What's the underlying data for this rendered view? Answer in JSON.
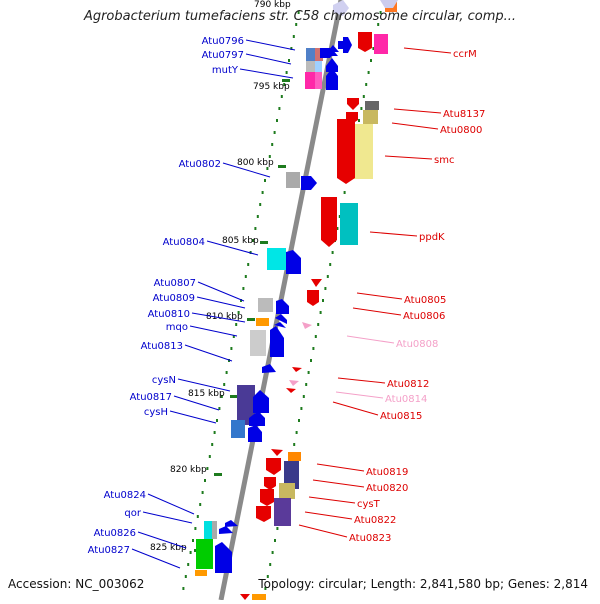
{
  "title": "Agrobacterium tumefaciens str. C58 chromosome circular, comp...",
  "accession": "Accession: NC_003062",
  "topology": "Topology: circular; Length: 2,841,580 bp; Genes: 2,814",
  "colors": {
    "backbone": "#8a8a8a",
    "tick": "#1e7b1e",
    "plus_strand": "#0000e6",
    "minus_strand": "#e60000",
    "faded_gene": "#f4a0c8",
    "leader_left": "#0000cc",
    "leader_right": "#dd0000"
  },
  "scale_labels": [
    "790 kbp",
    "795 kbp",
    "800 kbp",
    "805 kbp",
    "810 kbp",
    "815 kbp",
    "820 kbp",
    "825 kbp"
  ],
  "left_genes": [
    "Atu0796",
    "Atu0797",
    "mutY",
    "Atu0802",
    "Atu0804",
    "Atu0807",
    "Atu0809",
    "Atu0810",
    "mqo",
    "Atu0813",
    "cysN",
    "Atu0817",
    "cysH",
    "Atu0824",
    "qor",
    "Atu0826",
    "Atu0827"
  ],
  "right_genes": [
    "ccrM",
    "Atu8137",
    "Atu0800",
    "smc",
    "ppdK",
    "Atu0805",
    "Atu0806",
    "Atu0808",
    "Atu0812",
    "Atu0814",
    "Atu0815",
    "Atu0819",
    "Atu0820",
    "cysT",
    "Atu0822",
    "Atu0823"
  ]
}
